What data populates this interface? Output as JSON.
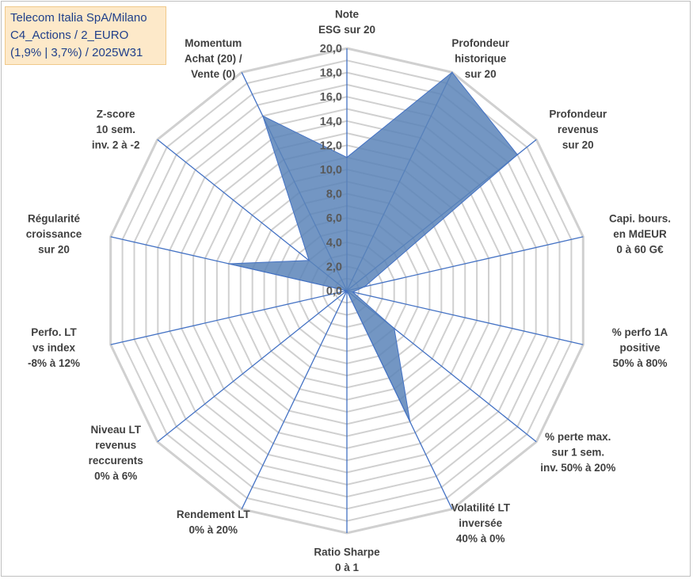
{
  "header": {
    "line1": "Telecom Italia SpA/Milano",
    "line2": "C4_Actions / 2_EURO",
    "line3": "(1,9% | 3,7%) / 2025W31"
  },
  "chart_data": {
    "type": "radar",
    "title": "Telecom Italia SpA/Milano",
    "rlim": [
      0,
      20
    ],
    "ticks": [
      "0,0",
      "2,0",
      "4,0",
      "6,0",
      "8,0",
      "10,0",
      "12,0",
      "14,0",
      "16,0",
      "18,0",
      "20,0"
    ],
    "grid": true,
    "fill_color": "#5b84b8",
    "line_color": "#4472c4",
    "grid_color": "#d0d0d0",
    "axes": [
      {
        "label": [
          "Note",
          "ESG sur 20"
        ],
        "value": 11.0
      },
      {
        "label": [
          "Profondeur",
          "historique",
          "sur 20"
        ],
        "value": 20.0
      },
      {
        "label": [
          "Profondeur",
          "revenus",
          "sur 20"
        ],
        "value": 18.0
      },
      {
        "label": [
          "Capi. bours.",
          "en MdEUR",
          "0 à 60 G€"
        ],
        "value": 1.5
      },
      {
        "label": [
          "% perfo 1A",
          "positive",
          "50% à 80%"
        ],
        "value": 0.5
      },
      {
        "label": [
          "% perte max.",
          "sur 1 sem.",
          "inv. 50% à 20%"
        ],
        "value": 5.0
      },
      {
        "label": [
          "Volatilité LT",
          "inversée",
          "40% à 0%"
        ],
        "value": 12.0
      },
      {
        "label": [
          "Ratio Sharpe",
          "0 à 1"
        ],
        "value": 0.0
      },
      {
        "label": [
          "Rendement LT",
          "0% à 20%"
        ],
        "value": 0.0
      },
      {
        "label": [
          "Niveau LT",
          "revenus",
          "reccurents",
          "0% à 6%"
        ],
        "value": 0.0
      },
      {
        "label": [
          "Perfo. LT",
          "vs index",
          "-8% à 12%"
        ],
        "value": 0.0
      },
      {
        "label": [
          "Régularité",
          "croissance",
          "sur 20"
        ],
        "value": 10.0
      },
      {
        "label": [
          "Z-score",
          "10 sem.",
          "inv. 2 à -2"
        ],
        "value": 4.0
      },
      {
        "label": [
          "Momentum",
          "Achat (20) /",
          "Vente (0)"
        ],
        "value": 16.0
      }
    ]
  }
}
